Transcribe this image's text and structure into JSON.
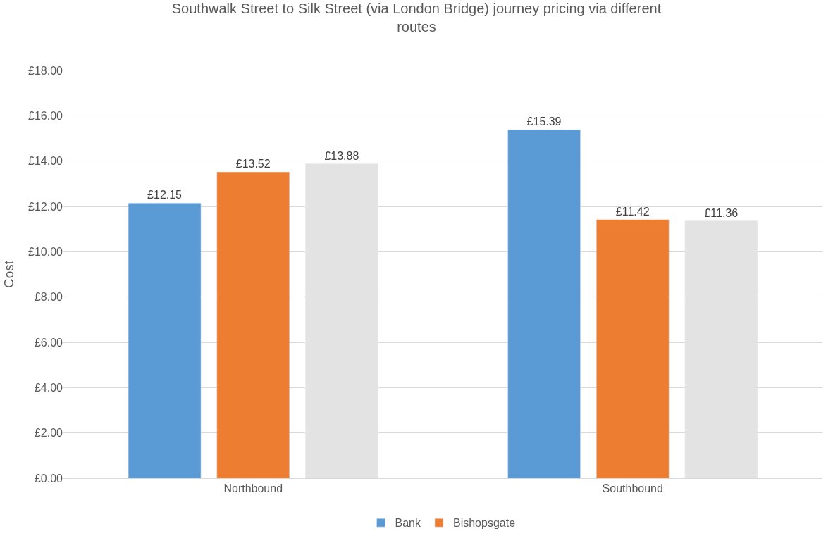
{
  "chart_data": {
    "type": "bar",
    "title": "Southwalk Street to Silk Street (via London Bridge) journey pricing via different routes",
    "ylabel": "Cost",
    "categories": [
      "Northbound",
      "Southbound"
    ],
    "series": [
      {
        "name": "Bank",
        "color": "#5b9bd5",
        "values": [
          12.15,
          15.39
        ],
        "value_labels": [
          "£12.15",
          "£15.39"
        ]
      },
      {
        "name": "Bishopsgate",
        "color": "#ed7d31",
        "values": [
          13.52,
          11.42
        ],
        "value_labels": [
          "£13.52",
          "£11.42"
        ]
      },
      {
        "color": "#e3e3e3",
        "values": [
          13.88,
          11.36
        ],
        "value_labels": [
          "£13.88",
          "£11.36"
        ]
      }
    ],
    "ylim": [
      0,
      18
    ],
    "yticks": [
      {
        "value": 0,
        "label": "£0.00"
      },
      {
        "value": 2,
        "label": "£2.00"
      },
      {
        "value": 4,
        "label": "£4.00"
      },
      {
        "value": 6,
        "label": "£6.00"
      },
      {
        "value": 8,
        "label": "£8.00"
      },
      {
        "value": 10,
        "label": "£10.00"
      },
      {
        "value": 12,
        "label": "£12.00"
      },
      {
        "value": 14,
        "label": "£14.00"
      },
      {
        "value": 16,
        "label": "£16.00"
      },
      {
        "value": 18,
        "label": "£18.00"
      }
    ],
    "grid": "y",
    "legend": "bottom"
  }
}
